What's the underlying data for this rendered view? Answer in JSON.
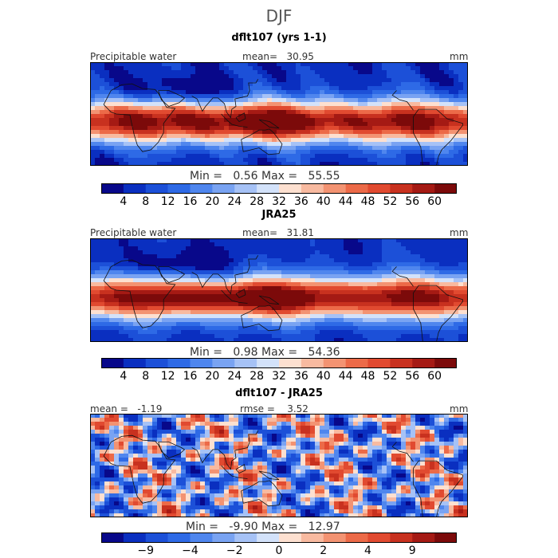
{
  "chart_data": {
    "type": "heatmap",
    "title": "DJF",
    "panels": [
      {
        "title": "dflt107 (yrs 1-1)",
        "variable": "Precipitable water",
        "mean_label": "mean=",
        "mean_value": "30.95",
        "units": "mm",
        "min_label": "Min =",
        "min_value": "0.56",
        "max_label": "Max =",
        "max_value": "55.55",
        "colorbar_ticks": [
          "4",
          "8",
          "12",
          "16",
          "20",
          "24",
          "28",
          "32",
          "36",
          "40",
          "44",
          "48",
          "52",
          "56",
          "60"
        ]
      },
      {
        "title": "JRA25",
        "variable": "Precipitable water",
        "mean_label": "mean=",
        "mean_value": "31.81",
        "units": "mm",
        "min_label": "Min =",
        "min_value": "0.98",
        "max_label": "Max =",
        "max_value": "54.36",
        "colorbar_ticks": [
          "4",
          "8",
          "12",
          "16",
          "20",
          "24",
          "28",
          "32",
          "36",
          "40",
          "44",
          "48",
          "52",
          "56",
          "60"
        ]
      },
      {
        "title": "dflt107 - JRA25",
        "mean_label": "mean =",
        "mean_value": "-1.19",
        "rmse_label": "rmse =",
        "rmse_value": "3.52",
        "units": "mm",
        "min_label": "Min =",
        "min_value": "-9.90",
        "max_label": "Max =",
        "max_value": "12.97",
        "colorbar_ticks": [
          "−9",
          "−4",
          "−2",
          "0",
          "2",
          "4",
          "9"
        ]
      }
    ],
    "colors": [
      "#08088a",
      "#0a2fc0",
      "#1c50d8",
      "#2e6ae6",
      "#4f86ee",
      "#79a3f2",
      "#a6c2f6",
      "#d3e2fa",
      "#fde0d0",
      "#f8baa0",
      "#f39372",
      "#ec6a48",
      "#e14a30",
      "#c8311f",
      "#a51a14",
      "#7c0a0a"
    ]
  }
}
